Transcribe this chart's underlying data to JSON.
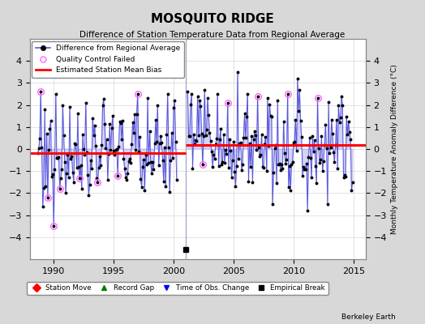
{
  "title": "MOSQUITO RIDGE",
  "subtitle": "Difference of Station Temperature Data from Regional Average",
  "ylabel": "Monthly Temperature Anomaly Difference (°C)",
  "xlim": [
    1988.0,
    2016.0
  ],
  "ylim": [
    -5,
    5
  ],
  "yticks": [
    -4,
    -3,
    -2,
    -1,
    0,
    1,
    2,
    3,
    4
  ],
  "xtick_years": [
    1990,
    1995,
    2000,
    2005,
    2010,
    2015
  ],
  "background_color": "#d8d8d8",
  "plot_bg_color": "#ffffff",
  "bias_y1": -0.18,
  "bias_y2": 0.18,
  "bias_x1_start": 1988.0,
  "bias_x1_end": 2001.0,
  "bias_x2_start": 2001.0,
  "bias_x2_end": 2016.0,
  "break_x": 2001.0,
  "legend1_labels": [
    "Difference from Regional Average",
    "Quality Control Failed",
    "Estimated Station Mean Bias"
  ],
  "legend2_labels": [
    "Station Move",
    "Record Gap",
    "Time of Obs. Change",
    "Empirical Break"
  ],
  "watermark": "Berkeley Earth",
  "line_color": "#5555dd",
  "fill_color": "#aaaaee",
  "dot_color": "#000000",
  "qc_color": "#ff66ff",
  "bias_color": "#ff0000",
  "grid_color": "#cccccc",
  "vline_color": "#aaaacc"
}
